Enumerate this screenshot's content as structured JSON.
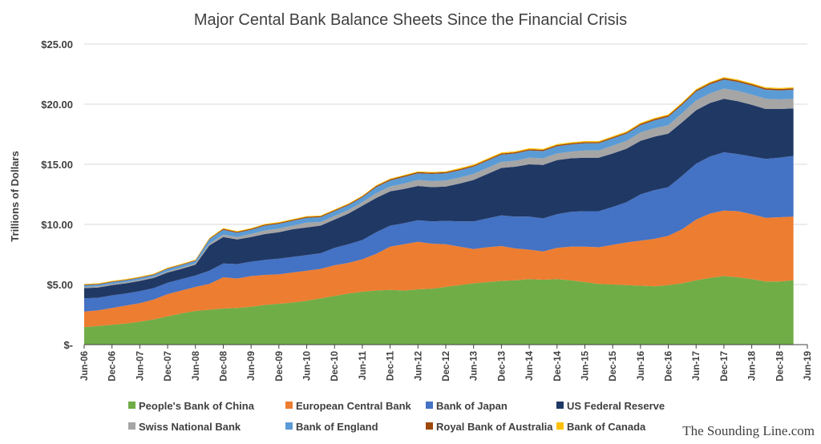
{
  "chart_data": {
    "type": "area",
    "stacked": true,
    "title": "Major Cental Bank Balance Sheets Since the Financial Crisis",
    "ylabel": "Trillions of Dollars",
    "xlabel": "",
    "ylim": [
      0,
      25
    ],
    "grid": true,
    "legend_position": "bottom",
    "credit": "The Sounding Line.com",
    "y_tick_values": [
      0,
      5,
      10,
      15,
      20,
      25
    ],
    "y_tick_labels": [
      "$-",
      "$5.00",
      "$10.00",
      "$15.00",
      "$20.00",
      "$25.00"
    ],
    "x_tick_labels": [
      "Jun-06",
      "Dec-06",
      "Jun-07",
      "Dec-07",
      "Jun-08",
      "Dec-08",
      "Jun-09",
      "Dec-09",
      "Jun-10",
      "Dec-10",
      "Jun-11",
      "Dec-11",
      "Jun-12",
      "Dec-12",
      "Jun-13",
      "Dec-13",
      "Jun-14",
      "Dec-14",
      "Jun-15",
      "Dec-15",
      "Jun-16",
      "Dec-16",
      "Jun-17",
      "Dec-17",
      "Jun-18",
      "Dec-18",
      "Jun-19"
    ],
    "x": [
      "Jun-06",
      "Sep-06",
      "Dec-06",
      "Mar-07",
      "Jun-07",
      "Sep-07",
      "Dec-07",
      "Mar-08",
      "Jun-08",
      "Sep-08",
      "Dec-08",
      "Mar-09",
      "Jun-09",
      "Sep-09",
      "Dec-09",
      "Mar-10",
      "Jun-10",
      "Sep-10",
      "Dec-10",
      "Mar-11",
      "Jun-11",
      "Sep-11",
      "Dec-11",
      "Mar-12",
      "Jun-12",
      "Sep-12",
      "Dec-12",
      "Mar-13",
      "Jun-13",
      "Sep-13",
      "Dec-13",
      "Mar-14",
      "Jun-14",
      "Sep-14",
      "Dec-14",
      "Mar-15",
      "Jun-15",
      "Sep-15",
      "Dec-15",
      "Mar-16",
      "Jun-16",
      "Sep-16",
      "Dec-16",
      "Mar-17",
      "Jun-17",
      "Sep-17",
      "Dec-17",
      "Mar-18",
      "Jun-18",
      "Sep-18",
      "Dec-18",
      "Mar-19"
    ],
    "series": [
      {
        "name": "People's Bank of China",
        "color": "#70ad47",
        "values": [
          1.45,
          1.55,
          1.65,
          1.75,
          1.9,
          2.1,
          2.35,
          2.6,
          2.8,
          2.9,
          3.0,
          3.05,
          3.15,
          3.3,
          3.4,
          3.5,
          3.65,
          3.85,
          4.05,
          4.25,
          4.4,
          4.5,
          4.55,
          4.5,
          4.6,
          4.65,
          4.8,
          4.95,
          5.1,
          5.2,
          5.3,
          5.35,
          5.45,
          5.4,
          5.45,
          5.35,
          5.2,
          5.05,
          5.0,
          4.95,
          4.9,
          4.85,
          4.95,
          5.1,
          5.35,
          5.55,
          5.7,
          5.6,
          5.45,
          5.25,
          5.25,
          5.35
        ]
      },
      {
        "name": "European Central Bank",
        "color": "#ed7d31",
        "values": [
          1.3,
          1.3,
          1.4,
          1.5,
          1.55,
          1.65,
          1.85,
          1.9,
          2.0,
          2.15,
          2.6,
          2.45,
          2.55,
          2.5,
          2.45,
          2.5,
          2.5,
          2.45,
          2.55,
          2.55,
          2.7,
          3.05,
          3.6,
          3.85,
          3.95,
          3.75,
          3.55,
          3.2,
          2.85,
          2.9,
          2.9,
          2.65,
          2.45,
          2.35,
          2.6,
          2.8,
          2.95,
          3.05,
          3.3,
          3.55,
          3.75,
          3.95,
          4.1,
          4.5,
          5.05,
          5.35,
          5.45,
          5.5,
          5.4,
          5.3,
          5.35,
          5.3
        ]
      },
      {
        "name": "Bank of Japan",
        "color": "#4472c4",
        "values": [
          1.1,
          1.05,
          1.05,
          1.0,
          1.0,
          0.95,
          0.95,
          0.95,
          0.95,
          1.1,
          1.15,
          1.2,
          1.2,
          1.25,
          1.3,
          1.3,
          1.3,
          1.3,
          1.45,
          1.55,
          1.6,
          1.8,
          1.75,
          1.75,
          1.8,
          1.85,
          1.95,
          2.1,
          2.3,
          2.4,
          2.55,
          2.65,
          2.75,
          2.75,
          2.8,
          2.9,
          2.95,
          3.0,
          3.15,
          3.35,
          3.85,
          4.05,
          4.05,
          4.45,
          4.65,
          4.75,
          4.85,
          4.75,
          4.8,
          4.9,
          4.95,
          5.05
        ]
      },
      {
        "name": "US Federal Reserve",
        "color": "#203864",
        "values": [
          0.85,
          0.85,
          0.85,
          0.85,
          0.85,
          0.85,
          0.85,
          0.85,
          0.9,
          2.1,
          2.2,
          2.05,
          2.05,
          2.15,
          2.2,
          2.3,
          2.3,
          2.3,
          2.35,
          2.55,
          2.85,
          2.85,
          2.85,
          2.85,
          2.85,
          2.85,
          2.85,
          3.15,
          3.45,
          3.7,
          3.95,
          4.15,
          4.35,
          4.45,
          4.5,
          4.45,
          4.45,
          4.45,
          4.45,
          4.45,
          4.45,
          4.45,
          4.45,
          4.45,
          4.45,
          4.45,
          4.45,
          4.4,
          4.3,
          4.15,
          4.05,
          3.95
        ]
      },
      {
        "name": "Swiss National Bank",
        "color": "#a5a5a5",
        "values": [
          0.1,
          0.1,
          0.1,
          0.1,
          0.1,
          0.1,
          0.1,
          0.12,
          0.12,
          0.15,
          0.2,
          0.2,
          0.25,
          0.3,
          0.3,
          0.3,
          0.4,
          0.3,
          0.3,
          0.3,
          0.3,
          0.4,
          0.4,
          0.45,
          0.5,
          0.5,
          0.5,
          0.5,
          0.5,
          0.5,
          0.5,
          0.5,
          0.55,
          0.55,
          0.55,
          0.55,
          0.6,
          0.6,
          0.65,
          0.65,
          0.7,
          0.7,
          0.7,
          0.75,
          0.8,
          0.8,
          0.85,
          0.85,
          0.85,
          0.85,
          0.8,
          0.8
        ]
      },
      {
        "name": "Bank of England",
        "color": "#5b9bd5",
        "values": [
          0.15,
          0.15,
          0.15,
          0.15,
          0.15,
          0.15,
          0.2,
          0.2,
          0.2,
          0.35,
          0.4,
          0.35,
          0.35,
          0.4,
          0.4,
          0.4,
          0.4,
          0.4,
          0.4,
          0.4,
          0.4,
          0.5,
          0.5,
          0.55,
          0.55,
          0.6,
          0.6,
          0.6,
          0.6,
          0.6,
          0.6,
          0.6,
          0.6,
          0.6,
          0.6,
          0.6,
          0.6,
          0.6,
          0.6,
          0.6,
          0.6,
          0.65,
          0.7,
          0.7,
          0.75,
          0.75,
          0.75,
          0.75,
          0.75,
          0.75,
          0.75,
          0.75
        ]
      },
      {
        "name": "Royal Bank of Australia",
        "color": "#9e480e",
        "values": [
          0.05,
          0.05,
          0.05,
          0.05,
          0.05,
          0.05,
          0.05,
          0.05,
          0.05,
          0.06,
          0.08,
          0.08,
          0.08,
          0.08,
          0.08,
          0.08,
          0.08,
          0.08,
          0.08,
          0.08,
          0.08,
          0.1,
          0.1,
          0.1,
          0.1,
          0.1,
          0.1,
          0.1,
          0.1,
          0.1,
          0.1,
          0.1,
          0.1,
          0.1,
          0.1,
          0.1,
          0.1,
          0.1,
          0.1,
          0.1,
          0.12,
          0.12,
          0.12,
          0.12,
          0.12,
          0.12,
          0.12,
          0.12,
          0.12,
          0.12,
          0.12,
          0.12
        ]
      },
      {
        "name": "Bank of Canada",
        "color": "#ffc000",
        "values": [
          0.05,
          0.05,
          0.05,
          0.05,
          0.05,
          0.05,
          0.05,
          0.05,
          0.05,
          0.06,
          0.06,
          0.06,
          0.06,
          0.06,
          0.06,
          0.06,
          0.06,
          0.06,
          0.06,
          0.06,
          0.06,
          0.06,
          0.06,
          0.06,
          0.06,
          0.06,
          0.06,
          0.08,
          0.08,
          0.08,
          0.08,
          0.08,
          0.08,
          0.08,
          0.08,
          0.08,
          0.08,
          0.08,
          0.08,
          0.08,
          0.08,
          0.08,
          0.08,
          0.08,
          0.08,
          0.08,
          0.08,
          0.08,
          0.08,
          0.08,
          0.08,
          0.08
        ]
      }
    ]
  }
}
